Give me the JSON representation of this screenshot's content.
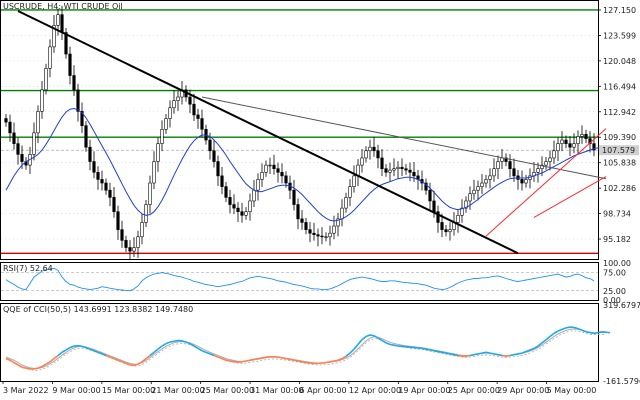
{
  "chart_data": [
    {
      "type": "candlestick",
      "title": "USCRUDE, H4: WTI CRUDE Oil",
      "symbol": "USCRUDE",
      "timeframe": "H4",
      "description": "WTI CRUDE Oil",
      "ylim": [
        92.4,
        128.4
      ],
      "price_ticks": [
        "127.150",
        "123.599",
        "120.048",
        "116.494",
        "112.942",
        "109.390",
        "105.838",
        "102.286",
        "98.734",
        "95.182"
      ],
      "price_tick_values": [
        127.15,
        123.599,
        120.048,
        116.494,
        112.942,
        109.39,
        105.838,
        102.286,
        98.734,
        95.182
      ],
      "current_price_label": "107.579",
      "current_price": 107.579,
      "time_labels": [
        "3 Mar 2022",
        "9 Mar 00:00",
        "15 Mar 00:00",
        "21 Mar 00:00",
        "25 Mar 00:00",
        "31 Mar 00:00",
        "6 Apr 00:00",
        "12 Apr 00:00",
        "19 Apr 00:00",
        "25 Apr 00:00",
        "29 Apr 00:00",
        "5 May 00:00"
      ],
      "colors": {
        "candle": "#000000",
        "ma": "#1f3fd6",
        "support_resistance": "#008000",
        "bottom_line": "#d00000",
        "channel": "#ff2a2a",
        "trendline": "#000000",
        "grid": "#c8c8c8"
      },
      "horizontal_levels": [
        {
          "price": 127.15,
          "color": "#008000"
        },
        {
          "price": 115.9,
          "color": "#008000"
        },
        {
          "price": 109.4,
          "color": "#008000"
        },
        {
          "price": 93.2,
          "color": "#d00000"
        }
      ],
      "trendlines": [
        {
          "from": [
            3,
            127.0
          ],
          "to": [
            128,
            93.2
          ],
          "color": "#000000"
        },
        {
          "from": [
            49,
            115.0
          ],
          "to": [
            150,
            103.6
          ],
          "color": "#555555"
        },
        {
          "from": [
            120,
            95.6
          ],
          "to": [
            150,
            110.6
          ],
          "color": "#ff2a2a"
        },
        {
          "from": [
            132,
            98.2
          ],
          "to": [
            150,
            103.9
          ],
          "color": "#ff2a2a"
        }
      ],
      "candles": {
        "open": [
          112.0,
          111.5,
          110.0,
          108.5,
          107.0,
          106.0,
          105.5,
          107.0,
          110.0,
          113.0,
          116.0,
          119.0,
          122.0,
          125.0,
          126.5,
          124.0,
          121.0,
          118.0,
          116.0,
          113.0,
          111.0,
          108.0,
          106.0,
          104.5,
          103.5,
          103.0,
          102.0,
          101.0,
          99.0,
          96.5,
          95.0,
          94.0,
          93.5,
          94.0,
          95.5,
          97.5,
          100.0,
          103.0,
          106.0,
          108.5,
          110.5,
          112.0,
          113.5,
          114.5,
          115.0,
          116.0,
          115.0,
          114.0,
          112.5,
          112.0,
          110.5,
          109.0,
          107.5,
          106.0,
          104.0,
          102.5,
          101.0,
          100.0,
          99.5,
          99.0,
          98.5,
          99.0,
          100.5,
          102.0,
          103.5,
          104.5,
          105.5,
          105.5,
          105.0,
          104.5,
          104.0,
          103.0,
          102.0,
          100.0,
          98.0,
          97.5,
          96.5,
          96.0,
          95.8,
          95.6,
          95.5,
          95.5,
          96.0,
          97.0,
          98.0,
          99.5,
          101.0,
          102.5,
          104.0,
          105.5,
          106.5,
          107.5,
          108.0,
          107.5,
          106.5,
          105.0,
          104.5,
          104.8,
          105.0,
          105.2,
          105.0,
          104.8,
          104.5,
          104.0,
          103.5,
          103.0,
          102.0,
          100.5,
          99.0,
          97.5,
          96.5,
          96.2,
          96.5,
          97.5,
          98.5,
          99.5,
          100.5,
          101.5,
          102.0,
          102.5,
          103.0,
          103.5,
          104.0,
          105.0,
          106.0,
          106.5,
          106.0,
          105.0,
          104.0,
          103.5,
          103.0,
          103.5,
          104.0,
          104.5,
          105.0,
          105.5,
          106.0,
          106.5,
          107.5,
          108.5,
          109.0,
          108.5,
          108.0,
          108.5,
          109.5,
          109.8,
          109.2,
          108.5
        ],
        "close": [
          111.5,
          110.0,
          108.5,
          107.0,
          106.0,
          105.5,
          107.0,
          110.0,
          113.0,
          116.0,
          119.0,
          122.0,
          125.0,
          126.5,
          124.0,
          121.0,
          118.0,
          116.0,
          113.0,
          111.0,
          108.0,
          106.0,
          104.5,
          103.5,
          103.0,
          102.0,
          101.0,
          99.0,
          96.5,
          95.0,
          94.0,
          93.5,
          94.0,
          95.5,
          97.5,
          100.0,
          103.0,
          106.0,
          108.5,
          110.5,
          112.0,
          113.5,
          114.5,
          115.0,
          116.0,
          115.0,
          114.0,
          112.5,
          112.0,
          110.5,
          109.0,
          107.5,
          106.0,
          104.0,
          102.5,
          101.0,
          100.0,
          99.5,
          99.0,
          98.5,
          99.0,
          100.5,
          102.0,
          103.5,
          104.5,
          105.5,
          105.5,
          105.0,
          104.5,
          104.0,
          103.0,
          102.0,
          100.0,
          98.0,
          97.5,
          96.5,
          96.0,
          95.8,
          95.6,
          95.5,
          95.5,
          96.0,
          97.0,
          98.0,
          99.5,
          101.0,
          102.5,
          104.0,
          105.5,
          106.5,
          107.5,
          108.0,
          107.5,
          106.5,
          105.0,
          104.5,
          104.8,
          105.0,
          105.2,
          105.0,
          104.8,
          104.5,
          104.0,
          103.5,
          103.0,
          102.0,
          100.5,
          99.0,
          97.5,
          96.5,
          96.2,
          96.5,
          97.5,
          98.5,
          99.5,
          100.5,
          101.5,
          102.0,
          102.5,
          103.0,
          103.5,
          104.0,
          105.0,
          106.0,
          106.5,
          106.0,
          105.0,
          104.0,
          103.5,
          103.0,
          103.5,
          104.0,
          104.5,
          105.0,
          105.5,
          106.0,
          106.5,
          107.5,
          108.5,
          109.0,
          108.5,
          108.0,
          108.5,
          109.5,
          109.8,
          109.2,
          108.5,
          107.6
        ],
        "range_pad": 1.6
      },
      "ma_values": [
        102.0,
        103.0,
        104.0,
        104.8,
        105.5,
        106.0,
        106.3,
        106.6,
        107.0,
        107.6,
        108.4,
        109.3,
        110.3,
        111.3,
        112.2,
        112.9,
        113.3,
        113.4,
        113.2,
        112.8,
        112.1,
        111.2,
        110.2,
        109.2,
        108.2,
        107.2,
        106.2,
        105.1,
        104.0,
        102.9,
        101.8,
        100.8,
        99.9,
        99.2,
        98.7,
        98.5,
        98.6,
        99.0,
        99.7,
        100.6,
        101.7,
        102.9,
        104.1,
        105.2,
        106.3,
        107.3,
        108.2,
        108.9,
        109.4,
        109.7,
        109.7,
        109.5,
        109.0,
        108.4,
        107.7,
        106.9,
        106.0,
        105.2,
        104.4,
        103.6,
        102.9,
        102.4,
        102.0,
        101.8,
        101.8,
        102.0,
        102.2,
        102.4,
        102.6,
        102.7,
        102.7,
        102.6,
        102.3,
        101.9,
        101.4,
        100.8,
        100.2,
        99.6,
        99.0,
        98.5,
        98.1,
        97.8,
        97.7,
        97.8,
        98.0,
        98.3,
        98.7,
        99.2,
        99.8,
        100.4,
        101.0,
        101.6,
        102.1,
        102.5,
        102.8,
        103.0,
        103.2,
        103.4,
        103.6,
        103.7,
        103.8,
        103.8,
        103.7,
        103.5,
        103.2,
        102.8,
        102.3,
        101.7,
        101.1,
        100.5,
        100.0,
        99.6,
        99.4,
        99.3,
        99.4,
        99.6,
        99.9,
        100.3,
        100.7,
        101.2,
        101.6,
        102.0,
        102.4,
        102.8,
        103.1,
        103.4,
        103.6,
        103.7,
        103.7,
        103.7,
        103.7,
        103.8,
        104.0,
        104.2,
        104.4,
        104.7,
        105.0,
        105.3,
        105.6,
        105.9,
        106.2,
        106.5,
        106.8,
        107.0,
        107.2,
        107.4,
        107.6,
        107.8,
        107.9,
        108.0
      ]
    },
    {
      "type": "line",
      "title": "RSI(7) 52.64",
      "ylim": [
        0,
        100
      ],
      "y_ticks": [
        "100.00",
        "75.00",
        "25.00",
        "0.00"
      ],
      "y_tick_values": [
        100,
        75,
        25,
        0
      ],
      "levels": [
        75,
        25
      ],
      "series": [
        {
          "color": "#1e90ff",
          "values": [
            55,
            48,
            42,
            35,
            30,
            28,
            45,
            62,
            70,
            78,
            82,
            84,
            86,
            80,
            62,
            50,
            42,
            40,
            35,
            32,
            30,
            28,
            30,
            32,
            36,
            34,
            32,
            30,
            28,
            27,
            26,
            25,
            30,
            38,
            52,
            60,
            66,
            70,
            72,
            74,
            72,
            70,
            66,
            64,
            62,
            58,
            55,
            50,
            48,
            45,
            42,
            40,
            38,
            36,
            38,
            40,
            42,
            45,
            48,
            50,
            55,
            60,
            62,
            64,
            62,
            60,
            58,
            55,
            52,
            50,
            48,
            45,
            42,
            40,
            38,
            35,
            32,
            30,
            30,
            28,
            28,
            30,
            34,
            38,
            44,
            50,
            55,
            58,
            60,
            62,
            60,
            58,
            55,
            52,
            50,
            50,
            52,
            52,
            50,
            48,
            47,
            46,
            45,
            44,
            42,
            40,
            36,
            32,
            30,
            28,
            30,
            34,
            40,
            46,
            50,
            54,
            56,
            58,
            58,
            60,
            60,
            62,
            64,
            65,
            62,
            58,
            55,
            52,
            50,
            52,
            54,
            56,
            58,
            60,
            62,
            64,
            66,
            68,
            70,
            66,
            62,
            64,
            68,
            70,
            66,
            60,
            58,
            52
          ]
        }
      ]
    },
    {
      "type": "line",
      "title": "QQE of CCI(50,5) 143.6991 123.8382 149.7480",
      "ylim": [
        -161.5796,
        319.6797
      ],
      "y_ticks": [
        "319.6797",
        "-161.5796"
      ],
      "y_tick_values": [
        319.6797,
        -161.5796
      ],
      "series": [
        {
          "color": "#ff7f50",
          "values": [
            -20,
            -30,
            -45,
            -60,
            -75,
            -80,
            -85,
            -85,
            -80,
            -70,
            -55,
            -40,
            -20,
            0,
            20,
            35,
            50,
            60,
            62,
            58,
            50,
            40,
            30,
            20,
            10,
            0,
            -10,
            -20,
            -30,
            -40,
            -50,
            -60,
            -62,
            -55,
            -40,
            -20,
            0,
            20,
            40,
            60,
            75,
            85,
            90,
            95,
            92,
            85,
            75,
            60,
            45,
            30,
            20,
            10,
            0,
            -10,
            -20,
            -30,
            -35,
            -40,
            -42,
            -40,
            -35,
            -30,
            -25,
            -20,
            -15,
            -10,
            -8,
            -8,
            -10,
            -15,
            -20,
            -25,
            -30,
            -35,
            -40,
            -45,
            -48,
            -50,
            -50,
            -48,
            -45,
            -40,
            -35,
            -30,
            -20,
            -5,
            15,
            40,
            70,
            100,
            120,
            130,
            125,
            110,
            95,
            80,
            70,
            65,
            60,
            58,
            55,
            52,
            50,
            48,
            45,
            40,
            35,
            30,
            25,
            20,
            15,
            10,
            5,
            0,
            -5,
            -5,
            0,
            5,
            10,
            15,
            20,
            15,
            10,
            5,
            0,
            -5,
            0,
            5,
            10,
            15,
            25,
            35,
            45,
            60,
            80,
            100,
            120,
            140,
            155,
            165,
            175,
            180,
            178,
            170,
            160,
            150,
            145,
            140,
            145,
            150,
            148,
            144
          ]
        },
        {
          "color": "#aaaaaa",
          "values": [
            -10,
            -20,
            -30,
            -45,
            -60,
            -70,
            -78,
            -82,
            -82,
            -76,
            -66,
            -52,
            -36,
            -18,
            2,
            20,
            36,
            48,
            56,
            58,
            54,
            46,
            38,
            28,
            18,
            8,
            -2,
            -12,
            -22,
            -32,
            -42,
            -50,
            -56,
            -55,
            -46,
            -32,
            -14,
            6,
            24,
            42,
            58,
            70,
            80,
            86,
            88,
            86,
            80,
            70,
            58,
            44,
            32,
            20,
            10,
            0,
            -10,
            -20,
            -26,
            -32,
            -36,
            -38,
            -36,
            -32,
            -28,
            -24,
            -19,
            -14,
            -11,
            -10,
            -11,
            -13,
            -17,
            -21,
            -26,
            -30,
            -35,
            -39,
            -43,
            -46,
            -48,
            -48,
            -46,
            -43,
            -39,
            -34,
            -27,
            -16,
            -2,
            18,
            42,
            68,
            92,
            110,
            118,
            116,
            106,
            94,
            84,
            76,
            70,
            66,
            62,
            58,
            55,
            52,
            49,
            45,
            40,
            35,
            30,
            25,
            20,
            15,
            10,
            5,
            2,
            0,
            2,
            6,
            10,
            14,
            16,
            14,
            10,
            6,
            2,
            0,
            1,
            4,
            8,
            13,
            20,
            28,
            38,
            50,
            66,
            84,
            102,
            120,
            136,
            148,
            158,
            166,
            168,
            166,
            160,
            152,
            146,
            144,
            145,
            146,
            145
          ]
        }
      ]
    }
  ]
}
